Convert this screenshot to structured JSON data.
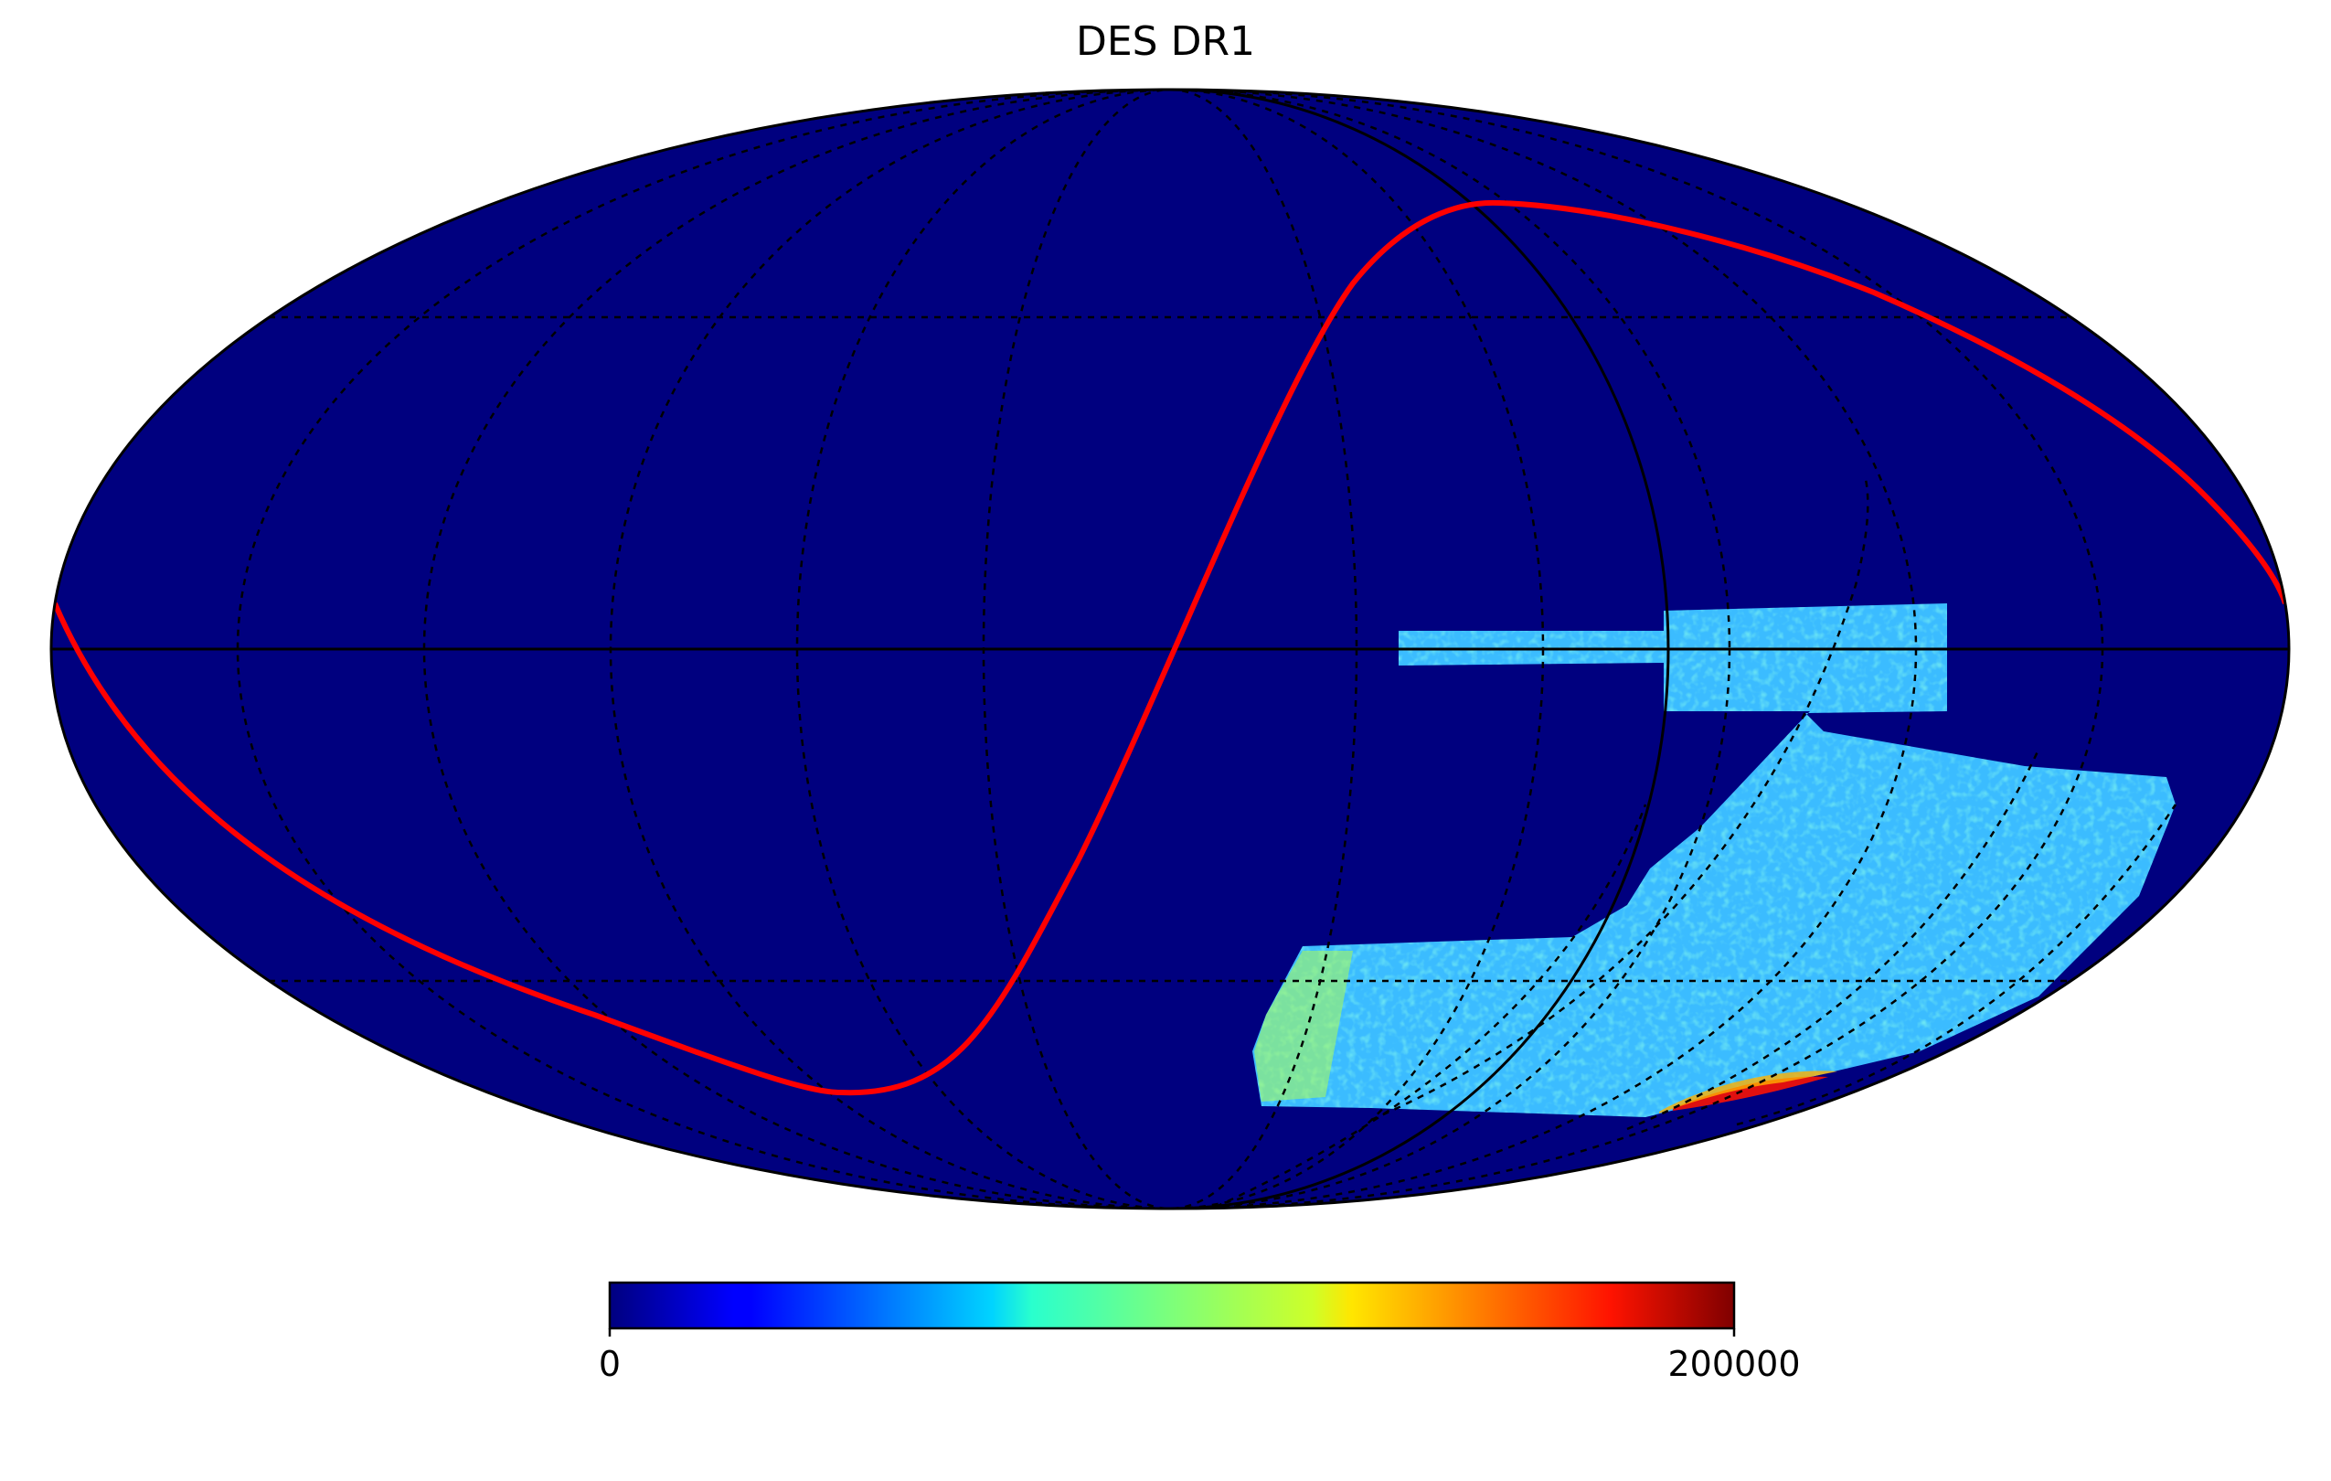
{
  "chart_data": {
    "type": "heatmap",
    "projection": "mollweide",
    "title": "DES DR1",
    "colormap": "jet",
    "colorbar": {
      "min_label": "0",
      "max_label": "200000",
      "range": [
        0,
        200000
      ],
      "orientation": "horizontal",
      "placement": "bottom"
    },
    "graticule": {
      "style": "dashed",
      "meridian_step_deg": 30,
      "parallel_step_deg": 30
    },
    "background_value": 0,
    "footprint_typical_value": 70000,
    "galactic_plane_color": "#ff0000",
    "reference_lines_color": "#000000",
    "colors": {
      "background_map": "#00007f",
      "footprint": "#33ccff",
      "hotspot": "#cc0000",
      "galactic_plane": "#ff0000"
    }
  }
}
